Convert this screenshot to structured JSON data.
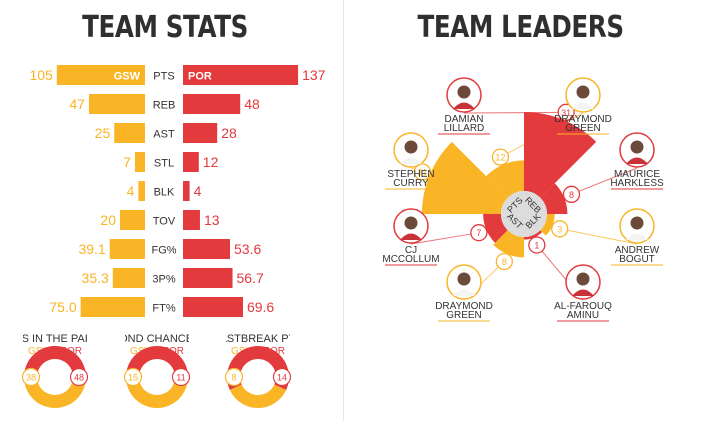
{
  "colors": {
    "gsw": "#f9b526",
    "por": "#e23a3d",
    "center": "#dcdcdc",
    "text": "#333333"
  },
  "team_stats": {
    "title": "TEAM STATS",
    "team_a_abbr": "GSW",
    "team_b_abbr": "POR",
    "rows": [
      {
        "label": "PTS",
        "a": "105",
        "b": "137",
        "a_val": 105,
        "b_val": 137
      },
      {
        "label": "REB",
        "a": "47",
        "b": "48",
        "a_val": 47,
        "b_val": 48
      },
      {
        "label": "AST",
        "a": "25",
        "b": "28",
        "a_val": 25,
        "b_val": 28
      },
      {
        "label": "STL",
        "a": "7",
        "b": "12",
        "a_val": 7,
        "b_val": 12
      },
      {
        "label": "BLK",
        "a": "4",
        "b": "4",
        "a_val": 4,
        "b_val": 4
      },
      {
        "label": "TOV",
        "a": "20",
        "b": "13",
        "a_val": 20,
        "b_val": 13
      },
      {
        "label": "FG%",
        "a": "39.1",
        "b": "53.6",
        "a_val": 39.1,
        "b_val": 53.6
      },
      {
        "label": "3P%",
        "a": "35.3",
        "b": "56.7",
        "a_val": 35.3,
        "b_val": 56.7
      },
      {
        "label": "FT%",
        "a": "75.0",
        "b": "69.6",
        "a_val": 75.0,
        "b_val": 69.6
      }
    ]
  },
  "donuts": [
    {
      "title": "PTS IN THE PAINT",
      "a_label": "GSW",
      "b_label": "POR",
      "a": 38,
      "b": 48
    },
    {
      "title": "SECOND CHANCE PTS",
      "a_label": "GSW",
      "b_label": "POR",
      "a": 15,
      "b": 11
    },
    {
      "title": "FASTBREAK PTS",
      "a_label": "GSW",
      "b_label": "POR",
      "a": 8,
      "b": 14
    }
  ],
  "team_leaders": {
    "title": "TEAM LEADERS",
    "center_labels": [
      "PTS",
      "REB",
      "AST",
      "BLK"
    ],
    "wedges": [
      {
        "stat": "PTS",
        "team": "por",
        "value": 31,
        "first": "DAMIAN",
        "last": "LILLARD"
      },
      {
        "stat": "PTS",
        "team": "gsw",
        "value": 31,
        "first": "STEPHEN",
        "last": "CURRY"
      },
      {
        "stat": "REB",
        "team": "gsw",
        "value": 12,
        "first": "DRAYMOND",
        "last": "GREEN"
      },
      {
        "stat": "REB",
        "team": "por",
        "value": 8,
        "first": "MAURICE",
        "last": "HARKLESS"
      },
      {
        "stat": "AST",
        "team": "por",
        "value": 7,
        "first": "CJ",
        "last": "MCCOLLUM"
      },
      {
        "stat": "AST",
        "team": "gsw",
        "value": 8,
        "first": "DRAYMOND",
        "last": "GREEN"
      },
      {
        "stat": "BLK",
        "team": "gsw",
        "value": 3,
        "first": "ANDREW",
        "last": "BOGUT"
      },
      {
        "stat": "BLK",
        "team": "por",
        "value": 1,
        "first": "AL-FAROUQ",
        "last": "AMINU"
      }
    ]
  },
  "chart_data": [
    {
      "type": "bar",
      "title": "TEAM STATS",
      "categories": [
        "PTS",
        "REB",
        "AST",
        "STL",
        "BLK",
        "TOV",
        "FG%",
        "3P%",
        "FT%"
      ],
      "series": [
        {
          "name": "GSW",
          "values": [
            105,
            47,
            25,
            7,
            4,
            20,
            39.1,
            35.3,
            75.0
          ]
        },
        {
          "name": "POR",
          "values": [
            137,
            48,
            28,
            12,
            4,
            13,
            53.6,
            56.7,
            69.6
          ]
        }
      ]
    },
    {
      "type": "pie",
      "title": "PTS IN THE PAINT",
      "categories": [
        "GSW",
        "POR"
      ],
      "values": [
        38,
        48
      ]
    },
    {
      "type": "pie",
      "title": "SECOND CHANCE PTS",
      "categories": [
        "GSW",
        "POR"
      ],
      "values": [
        15,
        11
      ]
    },
    {
      "type": "pie",
      "title": "FASTBREAK PTS",
      "categories": [
        "GSW",
        "POR"
      ],
      "values": [
        8,
        14
      ]
    },
    {
      "type": "pie",
      "title": "TEAM LEADERS",
      "categories": [
        "PTS",
        "PTS",
        "REB",
        "REB",
        "AST",
        "AST",
        "BLK",
        "BLK"
      ],
      "series": [
        {
          "values": [
            31,
            31,
            12,
            8,
            7,
            8,
            3,
            1
          ]
        }
      ]
    }
  ]
}
